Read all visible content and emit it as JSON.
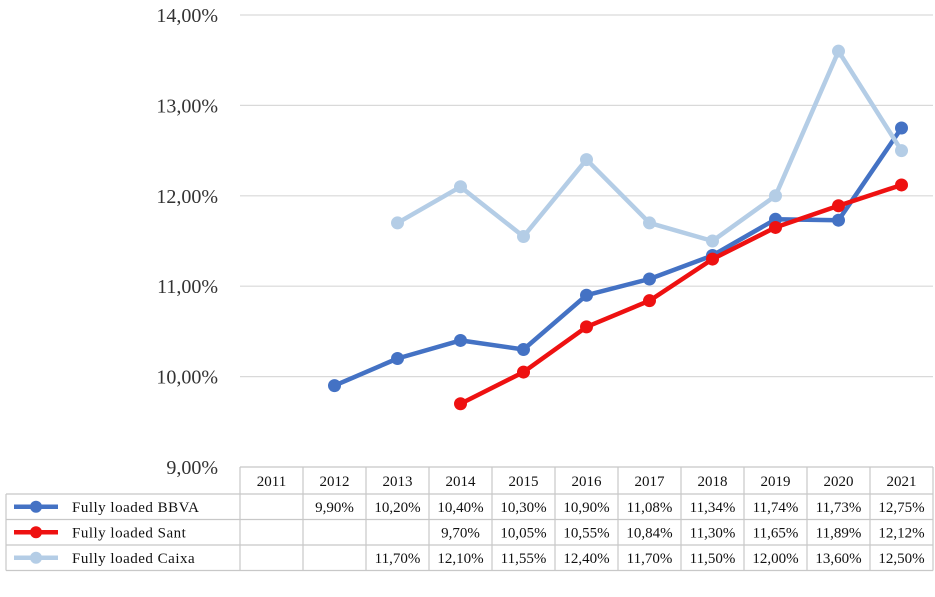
{
  "chart_data": {
    "type": "line",
    "ylim": [
      9,
      14
    ],
    "y_ticks": [
      "9,00%",
      "10,00%",
      "11,00%",
      "12,00%",
      "13,00%",
      "14,00%"
    ],
    "grid": true,
    "legend": "data-table",
    "categories": [
      "2011",
      "2012",
      "2013",
      "2014",
      "2015",
      "2016",
      "2017",
      "2018",
      "2019",
      "2020",
      "2021"
    ],
    "series": [
      {
        "name": "Fully loaded BBVA",
        "color": "#4472C4",
        "values": [
          null,
          9.9,
          10.2,
          10.4,
          10.3,
          10.9,
          11.08,
          11.34,
          11.74,
          11.73,
          12.75
        ],
        "labels": [
          "",
          "9,90%",
          "10,20%",
          "10,40%",
          "10,30%",
          "10,90%",
          "11,08%",
          "11,34%",
          "11,74%",
          "11,73%",
          "12,75%"
        ]
      },
      {
        "name": "Fully loaded Sant",
        "color": "#EE1111",
        "values": [
          null,
          null,
          null,
          9.7,
          10.05,
          10.55,
          10.84,
          11.3,
          11.65,
          11.89,
          12.12
        ],
        "labels": [
          "",
          "",
          "",
          "9,70%",
          "10,05%",
          "10,55%",
          "10,84%",
          "11,30%",
          "11,65%",
          "11,89%",
          "12,12%"
        ]
      },
      {
        "name": "Fully loaded Caixa",
        "color": "#B4CDE6",
        "values": [
          null,
          null,
          11.7,
          12.1,
          11.55,
          12.4,
          11.7,
          11.5,
          12.0,
          13.6,
          12.5
        ],
        "labels": [
          "",
          "",
          "11,70%",
          "12,10%",
          "11,55%",
          "12,40%",
          "11,70%",
          "11,50%",
          "12,00%",
          "13,60%",
          "12,50%"
        ]
      }
    ]
  }
}
